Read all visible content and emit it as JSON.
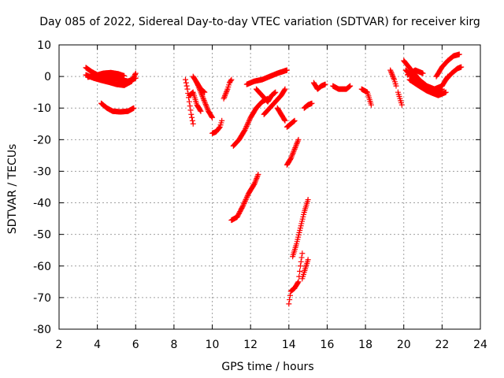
{
  "chart_data": {
    "type": "scatter",
    "title": "Day 085 of 2022, Sidereal Day-to-day VTEC variation (SDTVAR) for receiver kirg",
    "xlabel": "GPS time / hours",
    "ylabel": "SDTVAR / TECUs",
    "xlim": [
      2,
      24
    ],
    "ylim": [
      -80,
      10
    ],
    "grid": true,
    "marker": "+",
    "color": "#ff0000",
    "x_ticks": [
      "2",
      "4",
      "6",
      "8",
      "10",
      "12",
      "14",
      "16",
      "18",
      "20",
      "22",
      "24"
    ],
    "y_ticks": [
      "10",
      "0",
      "-10",
      "-20",
      "-30",
      "-40",
      "-50",
      "-60",
      "-70",
      "-80"
    ],
    "segments": [
      {
        "points": [
          [
            3.4,
            2.8
          ],
          [
            3.7,
            1.5
          ],
          [
            4.0,
            0.5
          ],
          [
            4.4,
            0.0
          ],
          [
            4.8,
            -0.5
          ],
          [
            5.2,
            -1.0
          ],
          [
            5.6,
            -1.5
          ],
          [
            6.0,
            -0.5
          ]
        ]
      },
      {
        "points": [
          [
            3.4,
            0.5
          ],
          [
            3.8,
            -0.5
          ],
          [
            4.2,
            -1.2
          ],
          [
            4.6,
            -1.8
          ],
          [
            5.0,
            -2.5
          ],
          [
            5.4,
            -2.8
          ],
          [
            5.8,
            -1.5
          ],
          [
            6.0,
            1.0
          ]
        ]
      },
      {
        "points": [
          [
            3.5,
            -0.2
          ],
          [
            3.9,
            0.3
          ],
          [
            4.3,
            1.0
          ],
          [
            4.7,
            1.2
          ],
          [
            5.1,
            0.8
          ],
          [
            5.4,
            0.2
          ]
        ]
      },
      {
        "points": [
          [
            4.2,
            -8.5
          ],
          [
            4.5,
            -10.0
          ],
          [
            4.8,
            -11.0
          ],
          [
            5.2,
            -11.2
          ],
          [
            5.6,
            -11.0
          ],
          [
            5.9,
            -10.0
          ]
        ]
      },
      {
        "points": [
          [
            8.6,
            -1.0
          ],
          [
            8.7,
            -4.0
          ],
          [
            8.8,
            -8.0
          ],
          [
            8.9,
            -12.0
          ],
          [
            9.0,
            -15.0
          ]
        ]
      },
      {
        "points": [
          [
            8.8,
            -6.0
          ],
          [
            9.0,
            -5.0
          ],
          [
            9.2,
            -9.0
          ],
          [
            9.4,
            -11.0
          ]
        ]
      },
      {
        "points": [
          [
            9.2,
            -2.0
          ],
          [
            9.4,
            -5.0
          ],
          [
            9.6,
            -8.0
          ],
          [
            9.8,
            -11.0
          ],
          [
            10.0,
            -13.0
          ]
        ]
      },
      {
        "points": [
          [
            9.0,
            0.0
          ],
          [
            9.2,
            -2.0
          ],
          [
            9.4,
            -4.0
          ],
          [
            9.6,
            -5.0
          ]
        ]
      },
      {
        "points": [
          [
            10.0,
            -18.0
          ],
          [
            10.2,
            -17.5
          ],
          [
            10.4,
            -16.0
          ],
          [
            10.5,
            -14.0
          ]
        ]
      },
      {
        "points": [
          [
            10.6,
            -7.0
          ],
          [
            10.8,
            -4.0
          ],
          [
            10.9,
            -2.0
          ],
          [
            11.0,
            -1.0
          ]
        ]
      },
      {
        "points": [
          [
            11.1,
            -22.0
          ],
          [
            11.4,
            -20.0
          ],
          [
            11.7,
            -17.0
          ],
          [
            12.0,
            -13.0
          ],
          [
            12.3,
            -10.0
          ],
          [
            12.6,
            -8.0
          ],
          [
            12.9,
            -7.0
          ]
        ]
      },
      {
        "points": [
          [
            11.0,
            -45.5
          ],
          [
            11.3,
            -44.5
          ],
          [
            11.6,
            -41.0
          ],
          [
            11.9,
            -37.0
          ],
          [
            12.2,
            -34.0
          ],
          [
            12.4,
            -31.0
          ]
        ]
      },
      {
        "points": [
          [
            11.8,
            -2.5
          ],
          [
            12.2,
            -1.5
          ],
          [
            12.6,
            -1.0
          ],
          [
            13.0,
            0.0
          ],
          [
            13.4,
            1.0
          ],
          [
            13.9,
            2.0
          ]
        ]
      },
      {
        "points": [
          [
            12.3,
            -4.0
          ],
          [
            12.6,
            -6.0
          ],
          [
            12.9,
            -8.0
          ],
          [
            13.1,
            -6.0
          ],
          [
            13.3,
            -5.0
          ]
        ]
      },
      {
        "points": [
          [
            12.7,
            -12.0
          ],
          [
            13.0,
            -10.0
          ],
          [
            13.3,
            -8.0
          ],
          [
            13.6,
            -6.0
          ],
          [
            13.8,
            -4.0
          ]
        ]
      },
      {
        "points": [
          [
            13.4,
            -10.0
          ],
          [
            13.6,
            -12.0
          ],
          [
            13.8,
            -14.0
          ]
        ]
      },
      {
        "points": [
          [
            13.9,
            -28.0
          ],
          [
            14.1,
            -26.0
          ],
          [
            14.3,
            -23.0
          ],
          [
            14.5,
            -20.0
          ]
        ]
      },
      {
        "points": [
          [
            13.9,
            -16.0
          ],
          [
            14.1,
            -15.0
          ],
          [
            14.3,
            -14.0
          ]
        ]
      },
      {
        "points": [
          [
            14.2,
            -57.0
          ],
          [
            14.4,
            -53.0
          ],
          [
            14.6,
            -48.0
          ],
          [
            14.8,
            -43.0
          ],
          [
            15.0,
            -39.0
          ]
        ]
      },
      {
        "points": [
          [
            14.0,
            -72.0
          ],
          [
            14.1,
            -68.0
          ],
          [
            14.3,
            -67.0
          ],
          [
            14.5,
            -65.0
          ],
          [
            14.6,
            -60.0
          ],
          [
            14.7,
            -56.0
          ]
        ]
      },
      {
        "points": [
          [
            14.7,
            -64.0
          ],
          [
            14.8,
            -62.0
          ],
          [
            15.0,
            -58.0
          ]
        ]
      },
      {
        "points": [
          [
            14.8,
            -10.0
          ],
          [
            15.0,
            -9.0
          ],
          [
            15.2,
            -8.5
          ]
        ]
      },
      {
        "points": [
          [
            15.3,
            -2.0
          ],
          [
            15.5,
            -4.0
          ],
          [
            15.7,
            -3.0
          ],
          [
            15.9,
            -2.5
          ]
        ]
      },
      {
        "points": [
          [
            16.3,
            -3.0
          ],
          [
            16.6,
            -4.0
          ],
          [
            17.0,
            -4.0
          ],
          [
            17.2,
            -3.0
          ]
        ]
      },
      {
        "points": [
          [
            17.8,
            -4.0
          ],
          [
            18.1,
            -5.0
          ],
          [
            18.3,
            -9.0
          ]
        ]
      },
      {
        "points": [
          [
            19.3,
            2.0
          ],
          [
            19.5,
            -1.0
          ],
          [
            19.6,
            -3.0
          ]
        ]
      },
      {
        "points": [
          [
            19.7,
            -5.0
          ],
          [
            19.8,
            -7.0
          ],
          [
            19.9,
            -9.0
          ]
        ]
      },
      {
        "points": [
          [
            20.0,
            5.0
          ],
          [
            20.4,
            2.0
          ],
          [
            20.8,
            -1.0
          ],
          [
            21.2,
            -3.0
          ],
          [
            21.6,
            -4.0
          ],
          [
            22.0,
            -3.0
          ],
          [
            22.3,
            0.0
          ]
        ]
      },
      {
        "points": [
          [
            20.1,
            2.0
          ],
          [
            20.6,
            -1.0
          ],
          [
            21.0,
            -3.0
          ],
          [
            21.4,
            -5.0
          ],
          [
            21.8,
            -6.0
          ],
          [
            22.2,
            -5.0
          ]
        ]
      },
      {
        "points": [
          [
            20.3,
            -1.0
          ],
          [
            20.8,
            -3.0
          ],
          [
            21.2,
            -4.5
          ],
          [
            21.6,
            -5.5
          ],
          [
            22.0,
            -4.0
          ]
        ]
      },
      {
        "points": [
          [
            20.2,
            0.5
          ],
          [
            20.6,
            2.0
          ],
          [
            21.0,
            1.0
          ]
        ]
      },
      {
        "points": [
          [
            21.7,
            0.0
          ],
          [
            22.0,
            3.0
          ],
          [
            22.3,
            5.0
          ],
          [
            22.6,
            6.5
          ],
          [
            22.9,
            7.0
          ]
        ]
      },
      {
        "points": [
          [
            22.2,
            -1.0
          ],
          [
            22.5,
            1.0
          ],
          [
            22.8,
            2.5
          ],
          [
            23.0,
            3.0
          ]
        ]
      }
    ]
  }
}
